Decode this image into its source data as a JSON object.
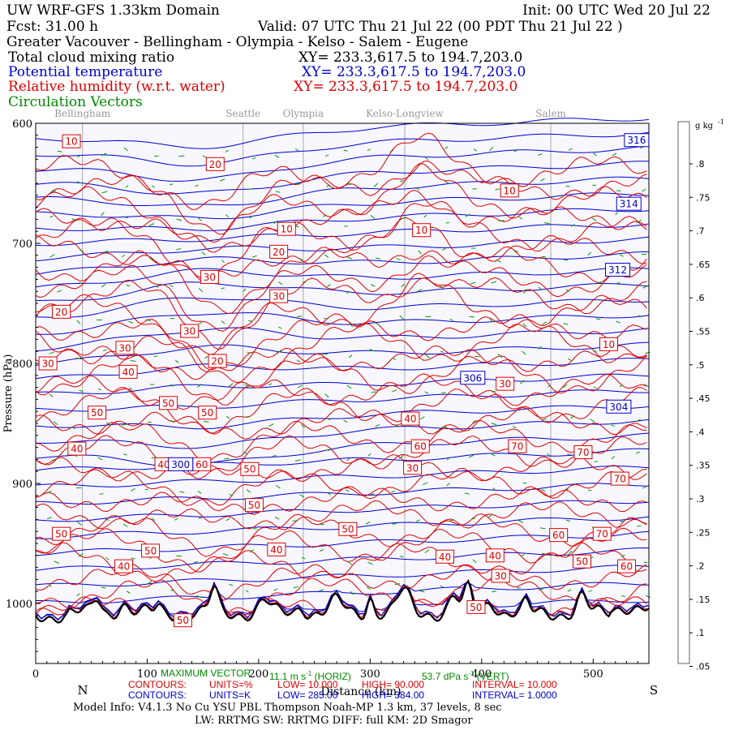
{
  "header": {
    "title": "UW WRF-GFS 1.33km Domain",
    "init": "Init: 00 UTC Wed 20 Jul 22",
    "fcst": "Fcst:  31.00 h",
    "valid": "Valid: 07 UTC Thu 21 Jul 22  (00 PDT Thu 21 Jul 22  )",
    "region": "Greater Vacouver - Bellingham - Olympia - Kelso - Salem - Eugene",
    "fields": [
      {
        "name": "Total cloud mixing ratio",
        "xy": "XY= 233.3,617.5 to 194.7,203.0",
        "color": "#000000"
      },
      {
        "name": "Potential temperature",
        "xy": "XY= 233.3,617.5 to 194.7,203.0",
        "color": "#0000cc"
      },
      {
        "name": "Relative humidity (w.r.t. water)",
        "xy": "XY= 233.3,617.5 to 194.7,203.0",
        "color": "#dd0000"
      },
      {
        "name": "Circulation Vectors",
        "xy": "",
        "color": "#008800"
      }
    ]
  },
  "colors": {
    "theta": "#0000cc",
    "rh": "#dd0000",
    "terrain": "#000000",
    "vectors": "#009900",
    "plot_bg": "#f7f7fd",
    "cities": "#999999"
  },
  "chart_data": {
    "type": "cross-section contour",
    "x_axis": {
      "label": "Distance (km)",
      "range": [
        0,
        550
      ],
      "ticks": [
        0,
        100,
        200,
        300,
        400,
        500
      ],
      "left_end": "N",
      "right_end": "S"
    },
    "y_axis": {
      "label": "Pressure (hPa)",
      "range": [
        1050,
        600
      ],
      "ticks": [
        600,
        700,
        800,
        900,
        1000
      ],
      "tick_labels": [
        "600",
        "700",
        "800",
        "900",
        "1000"
      ]
    },
    "cities": [
      {
        "name": "Bellingham",
        "km": 42
      },
      {
        "name": "Seattle",
        "km": 186
      },
      {
        "name": "Olympia",
        "km": 240
      },
      {
        "name": "Kelso-Longview",
        "km": 331
      },
      {
        "name": "Salem",
        "km": 462
      }
    ],
    "theta_labels": [
      {
        "value": "316",
        "km": 539,
        "p": 614
      },
      {
        "value": "314",
        "km": 532,
        "p": 667
      },
      {
        "value": "312",
        "km": 522,
        "p": 722
      },
      {
        "value": "306",
        "km": 392,
        "p": 812
      },
      {
        "value": "304",
        "km": 523,
        "p": 836
      },
      {
        "value": "300",
        "km": 130,
        "p": 884
      }
    ],
    "rh_labels": [
      {
        "value": "10",
        "km": 32,
        "p": 615
      },
      {
        "value": "20",
        "km": 161,
        "p": 634
      },
      {
        "value": "10",
        "km": 425,
        "p": 656
      },
      {
        "value": "10",
        "km": 225,
        "p": 688
      },
      {
        "value": "10",
        "km": 346,
        "p": 689
      },
      {
        "value": "20",
        "km": 218,
        "p": 707
      },
      {
        "value": "30",
        "km": 156,
        "p": 728
      },
      {
        "value": "30",
        "km": 218,
        "p": 744
      },
      {
        "value": "20",
        "km": 23,
        "p": 757
      },
      {
        "value": "30",
        "km": 138,
        "p": 773
      },
      {
        "value": "10",
        "km": 514,
        "p": 784
      },
      {
        "value": "30",
        "km": 80,
        "p": 787
      },
      {
        "value": "30",
        "km": 11,
        "p": 800
      },
      {
        "value": "20",
        "km": 163,
        "p": 798
      },
      {
        "value": "40",
        "km": 83,
        "p": 807
      },
      {
        "value": "30",
        "km": 421,
        "p": 817
      },
      {
        "value": "50",
        "km": 119,
        "p": 833
      },
      {
        "value": "50",
        "km": 55,
        "p": 841
      },
      {
        "value": "50",
        "km": 154,
        "p": 841
      },
      {
        "value": "40",
        "km": 336,
        "p": 846
      },
      {
        "value": "60",
        "km": 345,
        "p": 869
      },
      {
        "value": "70",
        "km": 432,
        "p": 869
      },
      {
        "value": "40",
        "km": 37,
        "p": 871
      },
      {
        "value": "70",
        "km": 491,
        "p": 874
      },
      {
        "value": "40",
        "km": 115,
        "p": 884
      },
      {
        "value": "60",
        "km": 149,
        "p": 884
      },
      {
        "value": "30",
        "km": 338,
        "p": 887
      },
      {
        "value": "50",
        "km": 192,
        "p": 888
      },
      {
        "value": "70",
        "km": 524,
        "p": 896
      },
      {
        "value": "50",
        "km": 196,
        "p": 918
      },
      {
        "value": "50",
        "km": 280,
        "p": 938
      },
      {
        "value": "50",
        "km": 23,
        "p": 942
      },
      {
        "value": "60",
        "km": 469,
        "p": 943
      },
      {
        "value": "70",
        "km": 508,
        "p": 942
      },
      {
        "value": "40",
        "km": 216,
        "p": 955
      },
      {
        "value": "50",
        "km": 103,
        "p": 956
      },
      {
        "value": "40",
        "km": 367,
        "p": 961
      },
      {
        "value": "40",
        "km": 412,
        "p": 960
      },
      {
        "value": "50",
        "km": 490,
        "p": 965
      },
      {
        "value": "60",
        "km": 530,
        "p": 969
      },
      {
        "value": "40",
        "km": 79,
        "p": 969
      },
      {
        "value": "30",
        "km": 417,
        "p": 977
      },
      {
        "value": "50",
        "km": 395,
        "p": 1003
      },
      {
        "value": "50",
        "km": 132,
        "p": 1014
      }
    ],
    "colorbar": {
      "unit_html": "g kg",
      "unit_sup": "-1",
      "labels": [
        ".8",
        ".75",
        ".7",
        ".65",
        ".6",
        ".55",
        ".5",
        ".45",
        ".4",
        ".35",
        ".3",
        ".25",
        ".2",
        ".15",
        ".1",
        ".05"
      ],
      "range": [
        0,
        0.85
      ]
    }
  },
  "footer": {
    "max_vector_label": "MAXIMUM VECTOR",
    "max_vector_value": "11.1 m s",
    "max_vector_unit": "-1",
    "max_vector_suffix": "(HORIZ)",
    "vert_value": "53.7 dPa s",
    "vert_unit": "-1",
    "vert_suffix": "(VERT)",
    "rh_row": {
      "contours": "CONTOURS:",
      "units": "UNITS=%",
      "low": "LOW=",
      "low_val": "10.000",
      "high": "HIGH=",
      "high_val": "90.000",
      "interval": "INTERVAL=",
      "interval_val": "10.000"
    },
    "theta_row": {
      "contours": "CONTOURS:",
      "units": "UNITS=K",
      "low": "LOW=",
      "low_val": "285.00",
      "high": "HIGH=",
      "high_val": "384.00",
      "interval": "INTERVAL=",
      "interval_val": "1.0000"
    },
    "model_info": "Model Info: V4.1.3    No Cu    YSU PBL  Thompson     Noah-MP   1.3 km,   37 levels,    8 sec",
    "model_info2": "LW: RRTMG  SW: RRTMG    DIFF: full    KM: 2D Smagor"
  }
}
